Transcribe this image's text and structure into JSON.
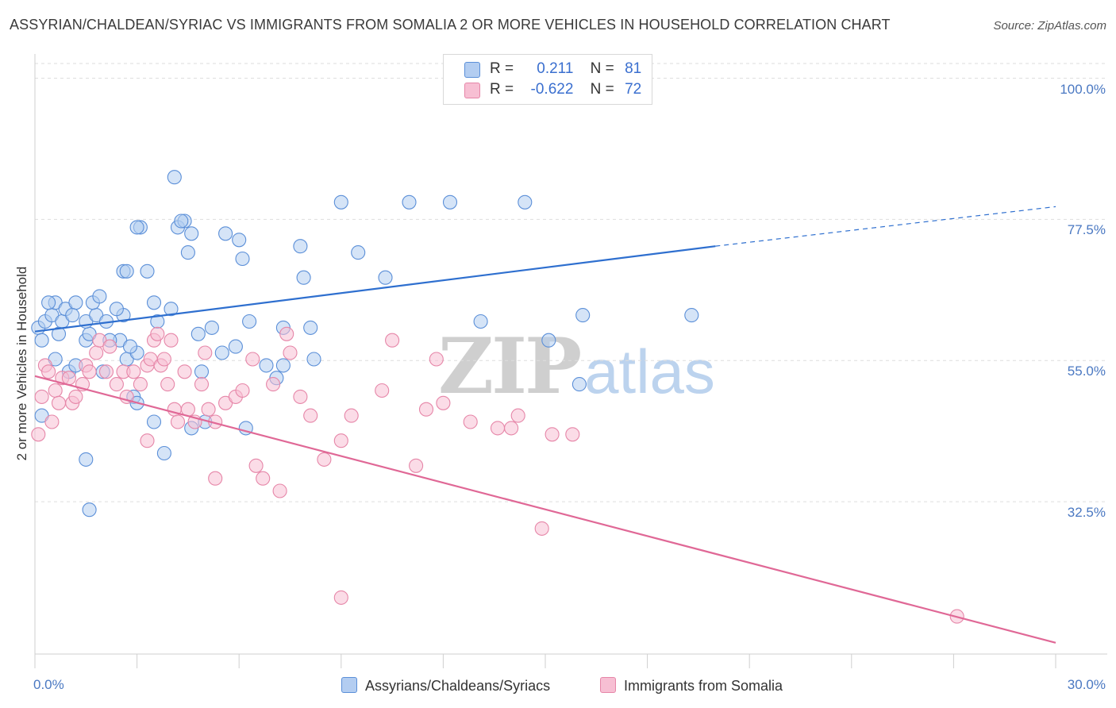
{
  "title": "ASSYRIAN/CHALDEAN/SYRIAC VS IMMIGRANTS FROM SOMALIA 2 OR MORE VEHICLES IN HOUSEHOLD CORRELATION CHART",
  "source": "Source: ZipAtlas.com",
  "watermark": {
    "zip": "ZIP",
    "atlas": "atlas"
  },
  "colors": {
    "blue": "#5b8fd8",
    "blue_fill": "#b3cdf1",
    "blue_line": "#2e6fcf",
    "pink": "#e686a8",
    "pink_fill": "#f7bfd3",
    "pink_line": "#e06896",
    "grid": "#dedede",
    "tick_text": "#4a78c2"
  },
  "legend": [
    {
      "r_label": "R =",
      "r_value": "0.211",
      "n_label": "N =",
      "n_value": "81",
      "color": "blue"
    },
    {
      "r_label": "R =",
      "r_value": "-0.622",
      "n_label": "N =",
      "n_value": "72",
      "color": "pink"
    }
  ],
  "chart_data": {
    "type": "scatter",
    "ylabel": "2 or more Vehicles in Household",
    "xlabel": "",
    "xlim": [
      0,
      30
    ],
    "ylim": [
      10,
      105
    ],
    "x_tick_labels": [
      {
        "value": 0,
        "label": "0.0%"
      },
      {
        "value": 30,
        "label": "30.0%"
      }
    ],
    "y_tick_labels": [
      {
        "value": 100,
        "label": "100.0%"
      },
      {
        "value": 77.5,
        "label": "77.5%"
      },
      {
        "value": 55,
        "label": "55.0%"
      },
      {
        "value": 32.5,
        "label": "32.5%"
      }
    ],
    "legend_position": "top-center",
    "series": [
      {
        "name": "Assyrians/Chaldeans/Syriacs",
        "color": "blue",
        "trend": {
          "x0": 0,
          "y0": 61.4,
          "x1": 20,
          "y1": 75.0,
          "dash_to_x": 30,
          "dash_to_y": 81.3
        },
        "points": [
          [
            0.1,
            62
          ],
          [
            0.2,
            60
          ],
          [
            0.3,
            63
          ],
          [
            0.5,
            64
          ],
          [
            0.6,
            66
          ],
          [
            0.4,
            66
          ],
          [
            0.6,
            57
          ],
          [
            0.8,
            63
          ],
          [
            0.7,
            61
          ],
          [
            0.9,
            65
          ],
          [
            1,
            55
          ],
          [
            1.2,
            66
          ],
          [
            1.1,
            64
          ],
          [
            1.5,
            60
          ],
          [
            1.6,
            61
          ],
          [
            1.2,
            56
          ],
          [
            1.5,
            63
          ],
          [
            1.8,
            64
          ],
          [
            1.7,
            66
          ],
          [
            2,
            55
          ],
          [
            2.1,
            63
          ],
          [
            1.9,
            67
          ],
          [
            2.5,
            60
          ],
          [
            2.6,
            64
          ],
          [
            2.7,
            57
          ],
          [
            2.4,
            65
          ],
          [
            3,
            58
          ],
          [
            2.8,
            59
          ],
          [
            2.2,
            60
          ],
          [
            2.6,
            71
          ],
          [
            2.7,
            71
          ],
          [
            3.1,
            78
          ],
          [
            3.0,
            78
          ],
          [
            3.3,
            71
          ],
          [
            3.5,
            66
          ],
          [
            3.6,
            63
          ],
          [
            4.0,
            65
          ],
          [
            4.2,
            78
          ],
          [
            4.4,
            79
          ],
          [
            4.5,
            74
          ],
          [
            4.6,
            77
          ],
          [
            4.3,
            79
          ],
          [
            4.1,
            86
          ],
          [
            4.8,
            61
          ],
          [
            4.9,
            55
          ],
          [
            5.2,
            62
          ],
          [
            5.5,
            58
          ],
          [
            5.9,
            59
          ],
          [
            6.0,
            76
          ],
          [
            6.1,
            73
          ],
          [
            5.6,
            77
          ],
          [
            6.3,
            63
          ],
          [
            6.8,
            56
          ],
          [
            7.1,
            54
          ],
          [
            7.3,
            56
          ],
          [
            7.3,
            62
          ],
          [
            7.8,
            75
          ],
          [
            7.9,
            70
          ],
          [
            8.1,
            62
          ],
          [
            8.2,
            57
          ],
          [
            9.0,
            82
          ],
          [
            9.5,
            74
          ],
          [
            10.3,
            70
          ],
          [
            11.0,
            82
          ],
          [
            12.2,
            82
          ],
          [
            13.1,
            63
          ],
          [
            14.4,
            82
          ],
          [
            15.1,
            60
          ],
          [
            16.1,
            64
          ],
          [
            16.0,
            53
          ],
          [
            19.3,
            64
          ],
          [
            3.5,
            47
          ],
          [
            4.6,
            46
          ],
          [
            3.8,
            42
          ],
          [
            1.5,
            41
          ],
          [
            1.6,
            33
          ],
          [
            5.0,
            47
          ],
          [
            2.9,
            51
          ],
          [
            3.0,
            50
          ],
          [
            0.2,
            48
          ],
          [
            6.2,
            46
          ]
        ]
      },
      {
        "name": "Immigrants from Somalia",
        "color": "pink",
        "trend": {
          "x0": 0,
          "y0": 54.3,
          "x1": 30,
          "y1": 11.8
        },
        "points": [
          [
            0.1,
            45
          ],
          [
            0.2,
            51
          ],
          [
            0.3,
            56
          ],
          [
            0.4,
            55
          ],
          [
            0.5,
            47
          ],
          [
            0.6,
            52
          ],
          [
            0.7,
            50
          ],
          [
            0.8,
            54
          ],
          [
            1.0,
            54
          ],
          [
            1.1,
            50
          ],
          [
            1.2,
            51
          ],
          [
            1.4,
            53
          ],
          [
            1.5,
            56
          ],
          [
            1.6,
            55
          ],
          [
            1.8,
            58
          ],
          [
            1.9,
            60
          ],
          [
            2.1,
            55
          ],
          [
            2.2,
            59
          ],
          [
            2.4,
            53
          ],
          [
            2.6,
            55
          ],
          [
            2.7,
            51
          ],
          [
            2.9,
            55
          ],
          [
            3.1,
            53
          ],
          [
            3.3,
            56
          ],
          [
            3.4,
            57
          ],
          [
            3.5,
            60
          ],
          [
            3.6,
            61
          ],
          [
            3.7,
            56
          ],
          [
            3.8,
            57
          ],
          [
            3.9,
            53
          ],
          [
            4.1,
            49
          ],
          [
            4.2,
            47
          ],
          [
            4.4,
            55
          ],
          [
            4.5,
            49
          ],
          [
            4.7,
            47
          ],
          [
            4.9,
            53
          ],
          [
            5.0,
            58
          ],
          [
            5.1,
            49
          ],
          [
            5.3,
            47
          ],
          [
            5.6,
            50
          ],
          [
            5.9,
            51
          ],
          [
            6.1,
            52
          ],
          [
            6.4,
            57
          ],
          [
            6.5,
            40
          ],
          [
            6.7,
            38
          ],
          [
            7.0,
            53
          ],
          [
            7.2,
            36
          ],
          [
            7.4,
            61
          ],
          [
            7.5,
            58
          ],
          [
            8.1,
            48
          ],
          [
            8.5,
            41
          ],
          [
            9.0,
            44
          ],
          [
            9.3,
            48
          ],
          [
            10.2,
            52
          ],
          [
            10.5,
            60
          ],
          [
            11.2,
            40
          ],
          [
            11.5,
            49
          ],
          [
            12.0,
            50
          ],
          [
            12.8,
            47
          ],
          [
            13.6,
            46
          ],
          [
            14.2,
            48
          ],
          [
            15.2,
            45
          ],
          [
            15.8,
            45
          ],
          [
            14.0,
            46
          ],
          [
            11.8,
            57
          ],
          [
            7.8,
            51
          ],
          [
            4.0,
            60
          ],
          [
            5.3,
            38
          ],
          [
            3.3,
            44
          ],
          [
            14.9,
            30
          ],
          [
            9.0,
            19
          ],
          [
            27.1,
            16
          ]
        ]
      }
    ]
  },
  "bottom_legend": [
    {
      "label": "Assyrians/Chaldeans/Syriacs",
      "color": "blue"
    },
    {
      "label": "Immigrants from Somalia",
      "color": "pink"
    }
  ]
}
